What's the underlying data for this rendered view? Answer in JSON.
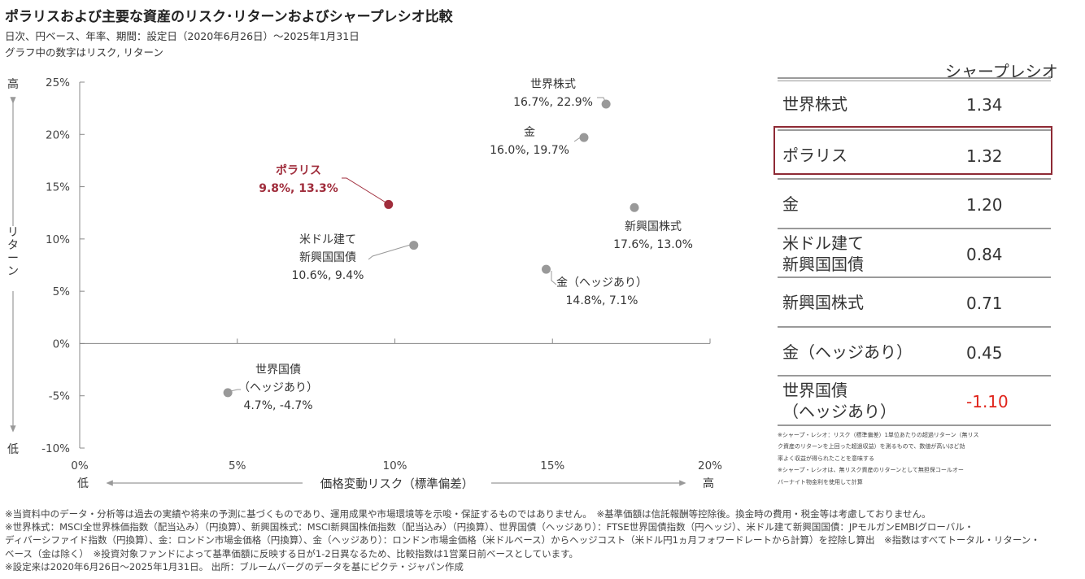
{
  "title": "ポラリスおよび主要な資産のリスク･リターンおよびシャープレシオ比較",
  "subtitle1": "日次、円ベース、年率、期間：設定日（2020年6月26日）～2025年1月31日",
  "subtitle2": "グラフ中の数字はリスク, リターン",
  "colors": {
    "highlight": "#a02d3c",
    "point": "#999999",
    "negative": "#e0241b",
    "axis": "#888888"
  },
  "chart_data": {
    "type": "scatter",
    "xlabel": "価格変動リスク（標準偏差）",
    "ylabel": "リターン",
    "x_low_label": "低",
    "x_high_label": "高",
    "y_low_label": "低",
    "y_high_label": "高",
    "xlim": [
      0,
      20
    ],
    "ylim": [
      -10,
      25
    ],
    "x_ticks": [
      "0%",
      "5%",
      "10%",
      "15%",
      "20%"
    ],
    "y_ticks": [
      "25%",
      "20%",
      "15%",
      "10%",
      "5%",
      "0%",
      "-5%",
      "-10%"
    ],
    "grid": false,
    "points": [
      {
        "name": "世界株式",
        "x": 16.7,
        "y": 22.9,
        "label_lines": [
          "世界株式",
          "16.7%, 22.9%"
        ],
        "highlight": false
      },
      {
        "name": "金",
        "x": 16.0,
        "y": 19.7,
        "label_lines": [
          "金",
          "16.0%, 19.7%"
        ],
        "highlight": false
      },
      {
        "name": "ポラリス",
        "x": 9.8,
        "y": 13.3,
        "label_lines": [
          "ポラリス",
          "9.8%, 13.3%"
        ],
        "highlight": true
      },
      {
        "name": "新興国株式",
        "x": 17.6,
        "y": 13.0,
        "label_lines": [
          "新興国株式",
          "17.6%, 13.0%"
        ],
        "highlight": false
      },
      {
        "name": "米ドル建て新興国国債",
        "x": 10.6,
        "y": 9.4,
        "label_lines": [
          "米ドル建て",
          "新興国国債",
          "10.6%, 9.4%"
        ],
        "highlight": false
      },
      {
        "name": "金（ヘッジあり）",
        "x": 14.8,
        "y": 7.1,
        "label_lines": [
          "金（ヘッジあり）",
          "14.8%, 7.1%"
        ],
        "highlight": false
      },
      {
        "name": "世界国債（ヘッジあり）",
        "x": 4.7,
        "y": -4.7,
        "label_lines": [
          "世界国債",
          "（ヘッジあり）",
          "4.7%, -4.7%"
        ],
        "highlight": false
      }
    ]
  },
  "sharpe_table": {
    "header": "シャープレシオ",
    "rows": [
      {
        "label_lines": [
          "世界株式"
        ],
        "value": "1.34",
        "negative": false
      },
      {
        "label_lines": [
          "ポラリス"
        ],
        "value": "1.32",
        "negative": false
      },
      {
        "label_lines": [
          "金"
        ],
        "value": "1.20",
        "negative": false
      },
      {
        "label_lines": [
          "米ドル建て",
          "新興国国債"
        ],
        "value": "0.84",
        "negative": false
      },
      {
        "label_lines": [
          "新興国株式"
        ],
        "value": "0.71",
        "negative": false
      },
      {
        "label_lines": [
          "金（ヘッジあり）"
        ],
        "value": "0.45",
        "negative": false
      },
      {
        "label_lines": [
          "世界国債",
          "（ヘッジあり）"
        ],
        "value": "-1.10",
        "negative": true
      }
    ]
  },
  "table_notes": [
    "※シャープ・レシオ：リスク（標準偏差）1単位あたりの超過リターン（無リス",
    "ク資産のリターンを上回った超過収益）を測るもので、数値が高いほど効",
    "率よく収益が得られたことを意味する",
    "※シャープ・レシオは、無リスク資産のリターンとして無担保コールオー",
    "バーナイト物金利を使用して計算"
  ],
  "footnotes": [
    "※当資料中のデータ・分析等は過去の実績や将来の予測に基づくものであり、運用成果や市場環境等を示唆・保証するものではありません。　※基準価額は信託報酬等控除後。換金時の費用・税金等は考慮しておりません。",
    "※世界株式：MSCI全世界株価指数（配当込み）（円換算）、新興国株式：MSCI新興国株価指数（配当込み）（円換算）、世界国債（ヘッジあり）：FTSE世界国債指数（円ヘッジ）、米ドル建て新興国国債：JPモルガンEMBIグローバル・",
    "ディバーシファイド指数（円換算）、金：ロンドン市場金価格（円換算）、金（ヘッジあり）：ロンドン市場金価格（米ドルベース）からヘッジコスト（米ドル円1ヵ月フォワードレートから計算）を控除し算出　※指数はすべてトータル・リターン・",
    "ベース（金は除く）　※投資対象ファンドによって基準価額に反映する日が1-2日異なるため、比較指数は1営業日前ベースとしています。",
    "※設定来は2020年6月26日～2025年1月31日。 出所：ブルームバーグのデータを基にピクテ・ジャパン作成"
  ]
}
